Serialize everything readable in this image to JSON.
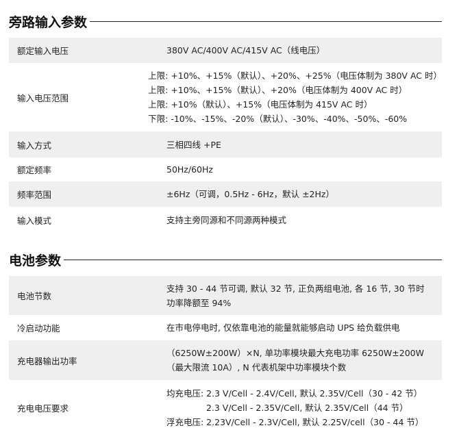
{
  "sections": [
    {
      "title": "旁路输入参数",
      "rows": [
        {
          "label": "额定输入电压",
          "lines": [
            "380V AC/400V AC/415V AC（线电压）"
          ]
        },
        {
          "label": "输入电压范围",
          "lines": [
            "上限: +10%、+15%（默认）、+20%、+25%（电压体制为 380V AC 时）",
            "上限: +10%、+15%（默认）、+20%（电压体制为 400V AC 时）",
            "上限: +10%（默认）、+15%（电压体制为 415V AC 时）",
            "下限: -10%、-15%、-20%（默认）、-30%、-40%、-50%、-60%"
          ]
        },
        {
          "label": "输入方式",
          "lines": [
            "三相四线 +PE"
          ]
        },
        {
          "label": "额定频率",
          "lines": [
            "50Hz/60Hz"
          ]
        },
        {
          "label": "频率范围",
          "lines": [
            "±6Hz（可调，0.5Hz - 6Hz，默认 ±2Hz）"
          ]
        },
        {
          "label": "输入模式",
          "lines": [
            "支持主旁同源和不同源两种模式"
          ]
        }
      ]
    },
    {
      "title": "电池参数",
      "rows": [
        {
          "label": "电池节数",
          "lines": [
            "支持 30 - 44 节可调, 默认 32 节, 正负两组电池, 各 16 节, 30 节时",
            "功率降额至 94%"
          ]
        },
        {
          "label": "冷启动功能",
          "lines": [
            "在市电停电时, 仅依靠电池的能量就能够启动 UPS 给负载供电"
          ]
        },
        {
          "label": "充电器输出功率",
          "lines": [
            "（6250W±200W）×N, 单功率模块最大充电功率 6250W±200W",
            "（最大限流 10A）, N 代表机架中功率模块个数"
          ]
        },
        {
          "label": "充电电压要求",
          "lines": [
            "均充电压: 2.3 V/Cell - 2.4V/Cell, 默认 2.35V/Cell（30 - 42 节）",
            "　　　　  2.3 V/Cell - 2.35V/Cell, 默认 2.35V/Cell（44 节）",
            "浮充电压: 2.23V/Cell - 2.3V/Cell, 默认 2.25V/cell（30 - 44 节）"
          ]
        }
      ]
    }
  ]
}
